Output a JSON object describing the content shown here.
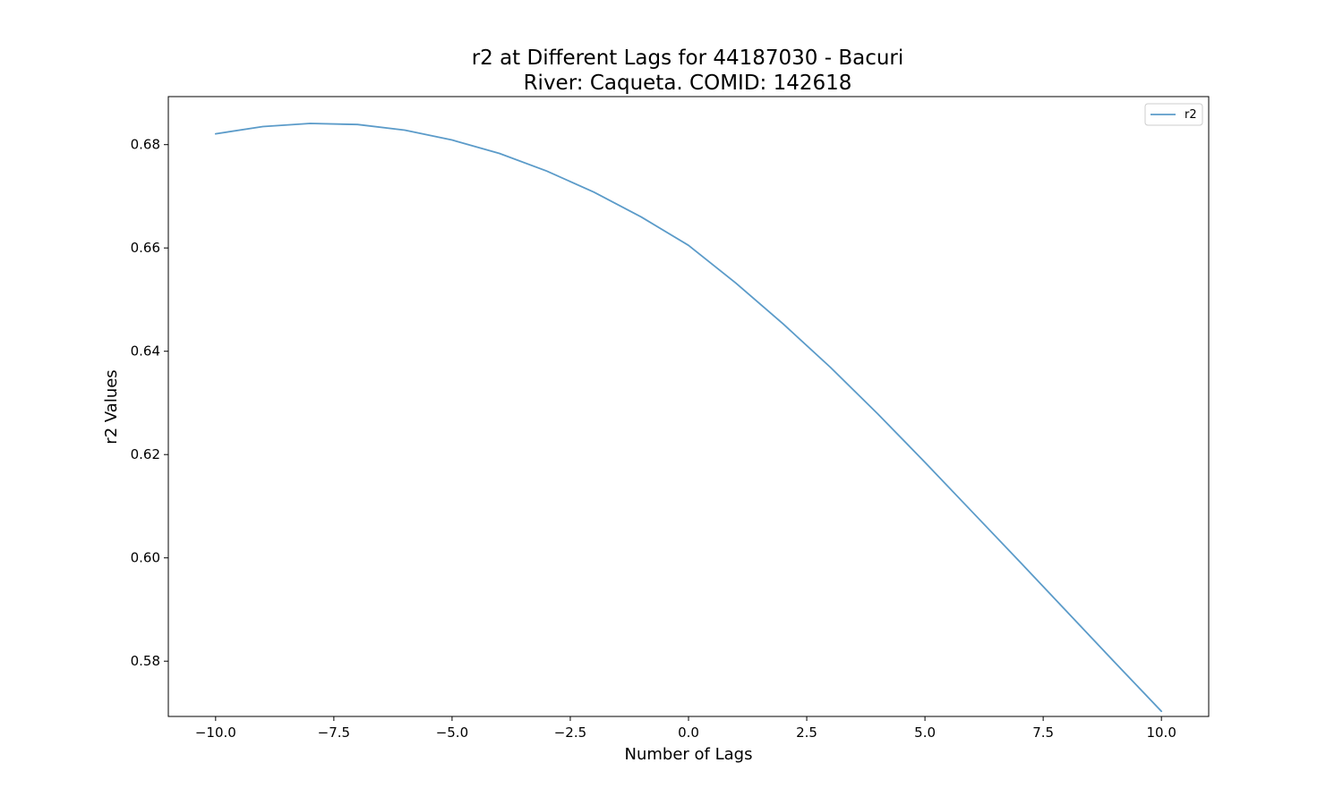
{
  "chart_data": {
    "type": "line",
    "title_line1": "r2 at Different Lags for 44187030 - Bacuri",
    "title_line2": "River: Caqueta. COMID: 142618",
    "xlabel": "Number of Lags",
    "ylabel": "r2 Values",
    "xlim": [
      -11,
      11
    ],
    "ylim": [
      0.5693,
      0.6893
    ],
    "xticks": [
      -10.0,
      -7.5,
      -5.0,
      -2.5,
      0.0,
      2.5,
      5.0,
      7.5,
      10.0
    ],
    "xtick_labels": [
      "−10.0",
      "−7.5",
      "−5.0",
      "−2.5",
      "0.0",
      "2.5",
      "5.0",
      "7.5",
      "10.0"
    ],
    "yticks": [
      0.58,
      0.6,
      0.62,
      0.64,
      0.66,
      0.68
    ],
    "ytick_labels": [
      "0.58",
      "0.60",
      "0.62",
      "0.64",
      "0.66",
      "0.68"
    ],
    "grid": false,
    "legend_position": "top-right",
    "series": [
      {
        "name": "r2",
        "color": "#5b9bc9",
        "x": [
          -10,
          -9,
          -8,
          -7,
          -6,
          -5,
          -4,
          -3,
          -2,
          -1,
          0,
          1,
          2,
          3,
          4,
          5,
          6,
          7,
          8,
          9,
          10
        ],
        "y": [
          0.6821,
          0.6835,
          0.6841,
          0.6839,
          0.6828,
          0.6809,
          0.6783,
          0.6749,
          0.6708,
          0.666,
          0.6605,
          0.6532,
          0.6453,
          0.6369,
          0.6279,
          0.6185,
          0.6089,
          0.5993,
          0.5896,
          0.5799,
          0.5703
        ]
      }
    ]
  }
}
